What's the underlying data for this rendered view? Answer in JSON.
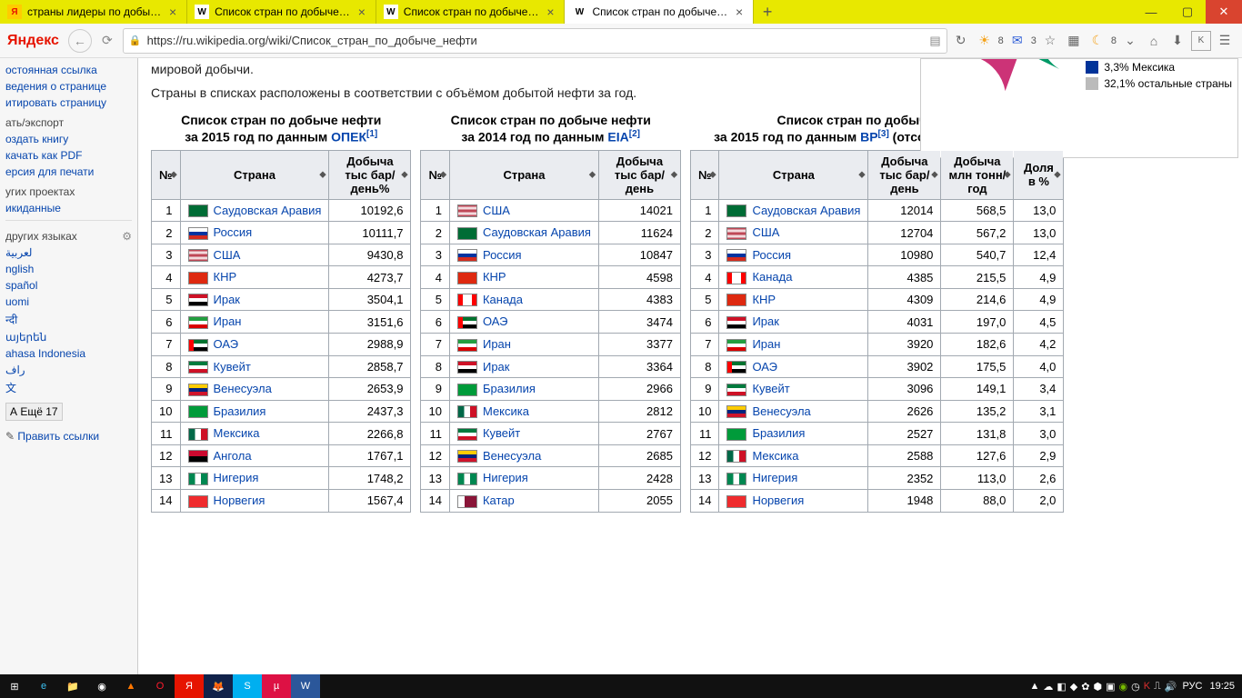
{
  "browser": {
    "tabs": [
      {
        "favicon": "Я",
        "favicon_bg": "#ffcc00",
        "favicon_color": "#e61400",
        "title": "страны лидеры по добы…",
        "active": false
      },
      {
        "favicon": "W",
        "favicon_bg": "#fff",
        "favicon_color": "#000",
        "title": "Список стран по добыче…",
        "active": false
      },
      {
        "favicon": "W",
        "favicon_bg": "#fff",
        "favicon_color": "#000",
        "title": "Список стран по добыче…",
        "active": false
      },
      {
        "favicon": "W",
        "favicon_bg": "#fff",
        "favicon_color": "#000",
        "title": "Список стран по добыче…",
        "active": true
      }
    ],
    "url": "https://ru.wikipedia.org/wiki/Список_стран_по_добыче_нефти",
    "logo": "Яндекс",
    "toolbar_badges": {
      "sun": "8",
      "mail": "3",
      "moon": "8"
    }
  },
  "sidebar": {
    "links1": [
      "остоянная ссылка",
      "ведения о странице",
      "итировать страницу"
    ],
    "heading1": "ать/экспорт",
    "links2": [
      "оздать книгу",
      "качать как PDF",
      "ерсия для печати"
    ],
    "heading2": "угих проектах",
    "links3": [
      "икиданные"
    ],
    "heading3": "других языках",
    "langs": [
      "لعربية",
      "nglish",
      "spañol",
      "uomi",
      "न्दी",
      "այերեն",
      "ahasa Indonesia",
      "راف",
      "文"
    ],
    "more": "А  Ещё 17",
    "edit": " Править ссылки"
  },
  "article": {
    "intro1": "мировой добычи.",
    "intro2": "Страны в списках расположены в соответствии с объёмом добытой нефти за год.",
    "legend": [
      {
        "color": "#003399",
        "text": "3,3% Мексика"
      },
      {
        "color": "#bbbbbb",
        "text": "32,1% остальные страны"
      }
    ],
    "pie_slices": [
      {
        "color": "#cc3377",
        "weight": 5
      },
      {
        "color": "#0066cc",
        "weight": 6
      },
      {
        "color": "#663399",
        "weight": 5
      },
      {
        "color": "#009966",
        "weight": 7
      }
    ]
  },
  "tables": {
    "headers": {
      "rank": "№",
      "country": "Страна",
      "prod1": "Добыча тыс бар/день%",
      "prod2": "Добыча тыс бар/день",
      "prod3a": "Добыча тыс бар/день",
      "prod3b": "Добыча млн тонн/год",
      "share": "Доля в %"
    },
    "t1": {
      "title": "Список стран по добыче нефти",
      "subtitle_pre": "за 2015 год по данным ",
      "subtitle_link": "ОПЕК",
      "ref": "[1]",
      "rows": [
        {
          "n": 1,
          "country": "Саудовская Аравия",
          "flag_style": "background:#006c35;",
          "val": "10192,6"
        },
        {
          "n": 2,
          "country": "Россия",
          "flag_style": "background:linear-gradient(#fff 33%,#0033a0 33% 66%,#d52b1e 66%);",
          "val": "10111,7"
        },
        {
          "n": 3,
          "country": "США",
          "flag_style": "background:linear-gradient(#b22234,#fff,#b22234,#fff,#b22234);",
          "val": "9430,8"
        },
        {
          "n": 4,
          "country": "КНР",
          "flag_style": "background:#de2910;",
          "val": "4273,7"
        },
        {
          "n": 5,
          "country": "Ирак",
          "flag_style": "background:linear-gradient(#ce1126 33%,#fff 33% 66%,#000 66%);",
          "val": "3504,1"
        },
        {
          "n": 6,
          "country": "Иран",
          "flag_style": "background:linear-gradient(#239f40 33%,#fff 33% 66%,#da0000 66%);",
          "val": "3151,6"
        },
        {
          "n": 7,
          "country": "ОАЭ",
          "flag_style": "background:linear-gradient(90deg,#ff0000 25%,transparent 25%),linear-gradient(#00732f 33%,#fff 33% 66%,#000 66%);",
          "val": "2988,9"
        },
        {
          "n": 8,
          "country": "Кувейт",
          "flag_style": "background:linear-gradient(#007a3d 33%,#fff 33% 66%,#ce1126 66%);",
          "val": "2858,7"
        },
        {
          "n": 9,
          "country": "Венесуэла",
          "flag_style": "background:linear-gradient(#ffcc00 33%,#00247d 33% 66%,#cf142b 66%);",
          "val": "2653,9"
        },
        {
          "n": 10,
          "country": "Бразилия",
          "flag_style": "background:#009b3a;",
          "val": "2437,3"
        },
        {
          "n": 11,
          "country": "Мексика",
          "flag_style": "background:linear-gradient(90deg,#006847 33%,#fff 33% 66%,#ce1126 66%);",
          "val": "2266,8"
        },
        {
          "n": 12,
          "country": "Ангола",
          "flag_style": "background:linear-gradient(#cc092f 50%,#000 50%);",
          "val": "1767,1"
        },
        {
          "n": 13,
          "country": "Нигерия",
          "flag_style": "background:linear-gradient(90deg,#008751 33%,#fff 33% 66%,#008751 66%);",
          "val": "1748,2"
        },
        {
          "n": 14,
          "country": "Норвегия",
          "flag_style": "background:#ef2b2d;",
          "val": "1567,4"
        }
      ]
    },
    "t2": {
      "title": "Список стран по добыче нефти",
      "subtitle_pre": "за 2014 год по данным ",
      "subtitle_link": "EIA",
      "ref": "[2]",
      "rows": [
        {
          "n": 1,
          "country": "США",
          "flag_style": "background:linear-gradient(#b22234,#fff,#b22234,#fff,#b22234);",
          "val": "14021"
        },
        {
          "n": 2,
          "country": "Саудовская Аравия",
          "flag_style": "background:#006c35;",
          "val": "11624"
        },
        {
          "n": 3,
          "country": "Россия",
          "flag_style": "background:linear-gradient(#fff 33%,#0033a0 33% 66%,#d52b1e 66%);",
          "val": "10847"
        },
        {
          "n": 4,
          "country": "КНР",
          "flag_style": "background:#de2910;",
          "val": "4598"
        },
        {
          "n": 5,
          "country": "Канада",
          "flag_style": "background:linear-gradient(90deg,#ff0000 25%,#fff 25% 75%,#ff0000 75%);",
          "val": "4383"
        },
        {
          "n": 6,
          "country": "ОАЭ",
          "flag_style": "background:linear-gradient(90deg,#ff0000 25%,transparent 25%),linear-gradient(#00732f 33%,#fff 33% 66%,#000 66%);",
          "val": "3474"
        },
        {
          "n": 7,
          "country": "Иран",
          "flag_style": "background:linear-gradient(#239f40 33%,#fff 33% 66%,#da0000 66%);",
          "val": "3377"
        },
        {
          "n": 8,
          "country": "Ирак",
          "flag_style": "background:linear-gradient(#ce1126 33%,#fff 33% 66%,#000 66%);",
          "val": "3364"
        },
        {
          "n": 9,
          "country": "Бразилия",
          "flag_style": "background:#009b3a;",
          "val": "2966"
        },
        {
          "n": 10,
          "country": "Мексика",
          "flag_style": "background:linear-gradient(90deg,#006847 33%,#fff 33% 66%,#ce1126 66%);",
          "val": "2812"
        },
        {
          "n": 11,
          "country": "Кувейт",
          "flag_style": "background:linear-gradient(#007a3d 33%,#fff 33% 66%,#ce1126 66%);",
          "val": "2767"
        },
        {
          "n": 12,
          "country": "Венесуэла",
          "flag_style": "background:linear-gradient(#ffcc00 33%,#00247d 33% 66%,#cf142b 66%);",
          "val": "2685"
        },
        {
          "n": 13,
          "country": "Нигерия",
          "flag_style": "background:linear-gradient(90deg,#008751 33%,#fff 33% 66%,#008751 66%);",
          "val": "2428"
        },
        {
          "n": 14,
          "country": "Катар",
          "flag_style": "background:linear-gradient(90deg,#fff 35%,#8a1538 35%);",
          "val": "2055"
        }
      ]
    },
    "t3": {
      "title": "Список стран по добыче нефти",
      "subtitle_pre": "за 2015 год по данным ",
      "subtitle_link": "BP",
      "ref": "[3]",
      "subtitle_post": " (отсортирован по весу)",
      "rows": [
        {
          "n": 1,
          "country": "Саудовская Аравия",
          "flag_style": "background:#006c35;",
          "a": "12014",
          "b": "568,5",
          "c": "13,0"
        },
        {
          "n": 2,
          "country": "США",
          "flag_style": "background:linear-gradient(#b22234,#fff,#b22234,#fff,#b22234);",
          "a": "12704",
          "b": "567,2",
          "c": "13,0"
        },
        {
          "n": 3,
          "country": "Россия",
          "flag_style": "background:linear-gradient(#fff 33%,#0033a0 33% 66%,#d52b1e 66%);",
          "a": "10980",
          "b": "540,7",
          "c": "12,4"
        },
        {
          "n": 4,
          "country": "Канада",
          "flag_style": "background:linear-gradient(90deg,#ff0000 25%,#fff 25% 75%,#ff0000 75%);",
          "a": "4385",
          "b": "215,5",
          "c": "4,9"
        },
        {
          "n": 5,
          "country": "КНР",
          "flag_style": "background:#de2910;",
          "a": "4309",
          "b": "214,6",
          "c": "4,9"
        },
        {
          "n": 6,
          "country": "Ирак",
          "flag_style": "background:linear-gradient(#ce1126 33%,#fff 33% 66%,#000 66%);",
          "a": "4031",
          "b": "197,0",
          "c": "4,5"
        },
        {
          "n": 7,
          "country": "Иран",
          "flag_style": "background:linear-gradient(#239f40 33%,#fff 33% 66%,#da0000 66%);",
          "a": "3920",
          "b": "182,6",
          "c": "4,2"
        },
        {
          "n": 8,
          "country": "ОАЭ",
          "flag_style": "background:linear-gradient(90deg,#ff0000 25%,transparent 25%),linear-gradient(#00732f 33%,#fff 33% 66%,#000 66%);",
          "a": "3902",
          "b": "175,5",
          "c": "4,0"
        },
        {
          "n": 9,
          "country": "Кувейт",
          "flag_style": "background:linear-gradient(#007a3d 33%,#fff 33% 66%,#ce1126 66%);",
          "a": "3096",
          "b": "149,1",
          "c": "3,4"
        },
        {
          "n": 10,
          "country": "Венесуэла",
          "flag_style": "background:linear-gradient(#ffcc00 33%,#00247d 33% 66%,#cf142b 66%);",
          "a": "2626",
          "b": "135,2",
          "c": "3,1"
        },
        {
          "n": 11,
          "country": "Бразилия",
          "flag_style": "background:#009b3a;",
          "a": "2527",
          "b": "131,8",
          "c": "3,0"
        },
        {
          "n": 12,
          "country": "Мексика",
          "flag_style": "background:linear-gradient(90deg,#006847 33%,#fff 33% 66%,#ce1126 66%);",
          "a": "2588",
          "b": "127,6",
          "c": "2,9"
        },
        {
          "n": 13,
          "country": "Нигерия",
          "flag_style": "background:linear-gradient(90deg,#008751 33%,#fff 33% 66%,#008751 66%);",
          "a": "2352",
          "b": "113,0",
          "c": "2,6"
        },
        {
          "n": 14,
          "country": "Норвегия",
          "flag_style": "background:#ef2b2d;",
          "a": "1948",
          "b": "88,0",
          "c": "2,0"
        }
      ]
    }
  },
  "taskbar": {
    "lang": "РУС",
    "clock": "19:25"
  }
}
